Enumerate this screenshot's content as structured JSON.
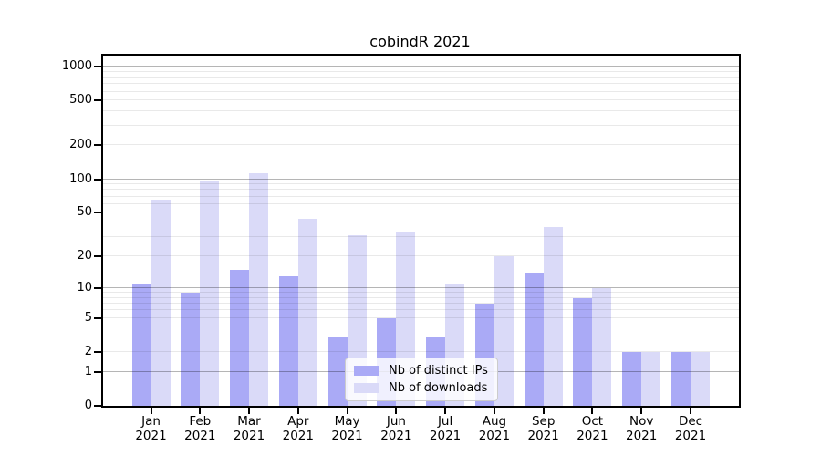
{
  "title": "cobindR 2021",
  "chart_data": {
    "type": "bar",
    "title": "cobindR 2021",
    "categories": [
      "Jan 2021",
      "Feb 2021",
      "Mar 2021",
      "Apr 2021",
      "May 2021",
      "Jun 2021",
      "Jul 2021",
      "Aug 2021",
      "Sep 2021",
      "Oct 2021",
      "Nov 2021",
      "Dec 2021"
    ],
    "series": [
      {
        "name": "Nb of distinct IPs",
        "color": "#aaaaf6",
        "values": [
          11,
          9,
          15,
          13,
          3,
          5,
          3,
          7,
          14,
          8,
          2,
          2
        ]
      },
      {
        "name": "Nb of downloads",
        "color": "#dadaf8",
        "values": [
          65,
          97,
          113,
          44,
          31,
          34,
          11,
          20,
          37,
          10,
          2,
          2
        ]
      }
    ],
    "yticks": [
      0,
      1,
      2,
      5,
      10,
      20,
      50,
      100,
      200,
      500,
      1000
    ],
    "yscale": "log10(value+1)",
    "ylim": [
      0,
      1000
    ],
    "xlabel": "",
    "ylabel": "",
    "grid": {
      "orientation": "horizontal",
      "major_at": [
        1,
        10,
        100,
        1000
      ],
      "minor": "2..9 per decade",
      "major_color": "#b8b8b8",
      "minor_color": "#ebebeb"
    },
    "legend_position": "inside lower-center-right"
  },
  "legend": {
    "items": [
      {
        "label": "Nb of distinct IPs"
      },
      {
        "label": "Nb of downloads"
      }
    ]
  },
  "colors": {
    "distinct_ips_bar": "#aaaaf6",
    "downloads_bar": "#dadaf8",
    "spine": "#000000",
    "background": "#ffffff",
    "text": "#000000"
  }
}
